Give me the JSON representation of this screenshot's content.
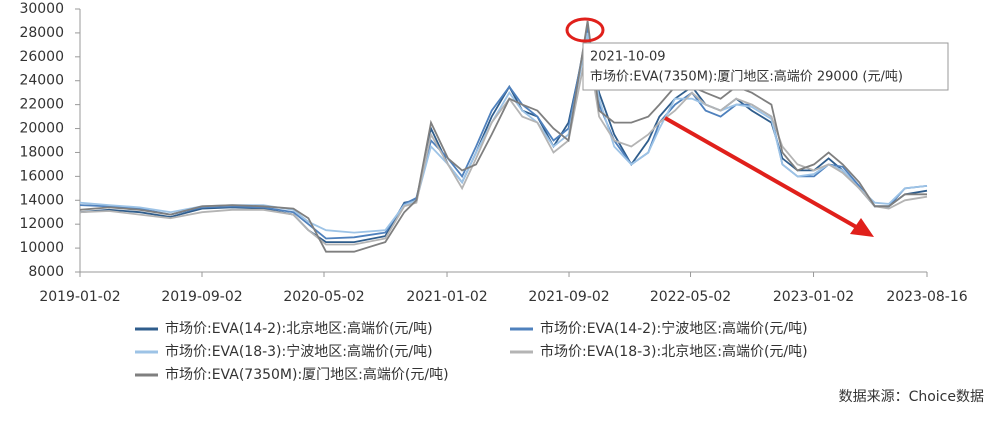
{
  "chart_data": {
    "type": "line",
    "x": [
      "2019-01-02",
      "2019-03-01",
      "2019-05-01",
      "2019-07-01",
      "2019-09-02",
      "2019-11-01",
      "2020-01-02",
      "2020-03-02",
      "2020-04-01",
      "2020-05-06",
      "2020-07-01",
      "2020-09-01",
      "2020-10-09",
      "2020-11-02",
      "2020-12-01",
      "2021-01-04",
      "2021-02-01",
      "2021-03-01",
      "2021-04-01",
      "2021-05-06",
      "2021-06-01",
      "2021-07-01",
      "2021-08-02",
      "2021-09-01",
      "2021-10-09",
      "2021-11-01",
      "2021-12-01",
      "2022-01-04",
      "2022-02-07",
      "2022-03-01",
      "2022-04-01",
      "2022-05-05",
      "2022-06-01",
      "2022-07-01",
      "2022-08-01",
      "2022-09-01",
      "2022-10-10",
      "2022-11-01",
      "2022-12-01",
      "2023-01-03",
      "2023-02-01",
      "2023-03-01",
      "2023-04-03",
      "2023-05-04",
      "2023-06-01",
      "2023-07-03",
      "2023-08-16"
    ],
    "series": [
      {
        "name": "市场价:EVA(14-2):北京地区:高端价(元/吨)",
        "color": "#2f5d8c",
        "values": [
          13000,
          13200,
          13000,
          12600,
          13300,
          13400,
          13300,
          12800,
          11500,
          10500,
          10500,
          11000,
          13800,
          14000,
          20000,
          17000,
          15500,
          18000,
          21000,
          23500,
          21500,
          21000,
          18500,
          20500,
          28000,
          23000,
          19500,
          17000,
          19000,
          21000,
          22500,
          23500,
          22000,
          21500,
          22500,
          21500,
          20500,
          17500,
          16500,
          16500,
          17500,
          16500,
          15000,
          13500,
          13500,
          14500,
          14800
        ]
      },
      {
        "name": "市场价:EVA(14-2):宁波地区:高端价(元/吨)",
        "color": "#4f81bd",
        "values": [
          13600,
          13500,
          13300,
          12800,
          13400,
          13500,
          13400,
          13000,
          12000,
          10800,
          10900,
          11300,
          13700,
          14200,
          19000,
          17500,
          16000,
          18500,
          21500,
          23500,
          22000,
          21000,
          19000,
          20000,
          28500,
          22000,
          19000,
          17000,
          18000,
          20500,
          22000,
          23000,
          21500,
          21000,
          22000,
          22000,
          21000,
          17000,
          16000,
          16000,
          17000,
          16800,
          15200,
          13500,
          13500,
          15000,
          15200
        ]
      },
      {
        "name": "市场价:EVA(18-3):宁波地区:高端价(元/吨)",
        "color": "#9dc3e6",
        "values": [
          13800,
          13600,
          13400,
          13000,
          13500,
          13600,
          13600,
          13200,
          12200,
          11500,
          11300,
          11500,
          13600,
          14000,
          18500,
          17000,
          15500,
          18000,
          20500,
          23000,
          21500,
          20500,
          18500,
          19500,
          28000,
          22500,
          18500,
          17000,
          18000,
          20000,
          22500,
          22500,
          22000,
          21500,
          22000,
          21800,
          20800,
          17000,
          16000,
          16200,
          17000,
          16500,
          15000,
          13800,
          13700,
          15000,
          15200
        ]
      },
      {
        "name": "市场价:EVA(18-3):北京地区:高端价(元/吨)",
        "color": "#b4b4b4",
        "values": [
          13000,
          13100,
          12800,
          12500,
          13000,
          13200,
          13200,
          12800,
          11500,
          10300,
          10300,
          10800,
          13500,
          13800,
          19500,
          17000,
          15000,
          17500,
          20500,
          22500,
          21000,
          20500,
          18000,
          19000,
          27000,
          21000,
          19000,
          18500,
          19500,
          20500,
          21500,
          23000,
          22000,
          21500,
          22500,
          22000,
          21000,
          18500,
          17000,
          16500,
          17000,
          16300,
          15000,
          13500,
          13300,
          14000,
          14300
        ]
      },
      {
        "name": "市场价:EVA(7350M):厦门地区:高端价(元/吨)",
        "color": "#7f7f7f",
        "values": [
          13200,
          13400,
          13200,
          12800,
          13500,
          13600,
          13500,
          13300,
          12500,
          9700,
          9700,
          10500,
          13000,
          14000,
          20500,
          17500,
          16500,
          17000,
          19500,
          22500,
          22000,
          21500,
          20000,
          19000,
          29000,
          21500,
          20500,
          20500,
          21000,
          22000,
          23500,
          23500,
          23000,
          22500,
          23500,
          23000,
          22000,
          18000,
          16500,
          17000,
          18000,
          17000,
          15500,
          13500,
          13500,
          14500,
          14500
        ]
      }
    ],
    "xlim": [
      "2019-01-02",
      "2023-08-16"
    ],
    "xticks": [
      "2019-01-02",
      "2019-09-02",
      "2020-05-02",
      "2021-01-02",
      "2021-09-02",
      "2022-05-02",
      "2023-01-02",
      "2023-08-16"
    ],
    "ylim": [
      8000,
      30000
    ],
    "yticks": [
      8000,
      10000,
      12000,
      14000,
      16000,
      18000,
      20000,
      22000,
      24000,
      26000,
      28000,
      30000
    ],
    "grid": false,
    "tooltip": {
      "date": "2021-10-09",
      "text": "市场价:EVA(7350M):厦门地区:高端价  29000 (元/吨)"
    },
    "source": "数据来源：Choice数据"
  }
}
